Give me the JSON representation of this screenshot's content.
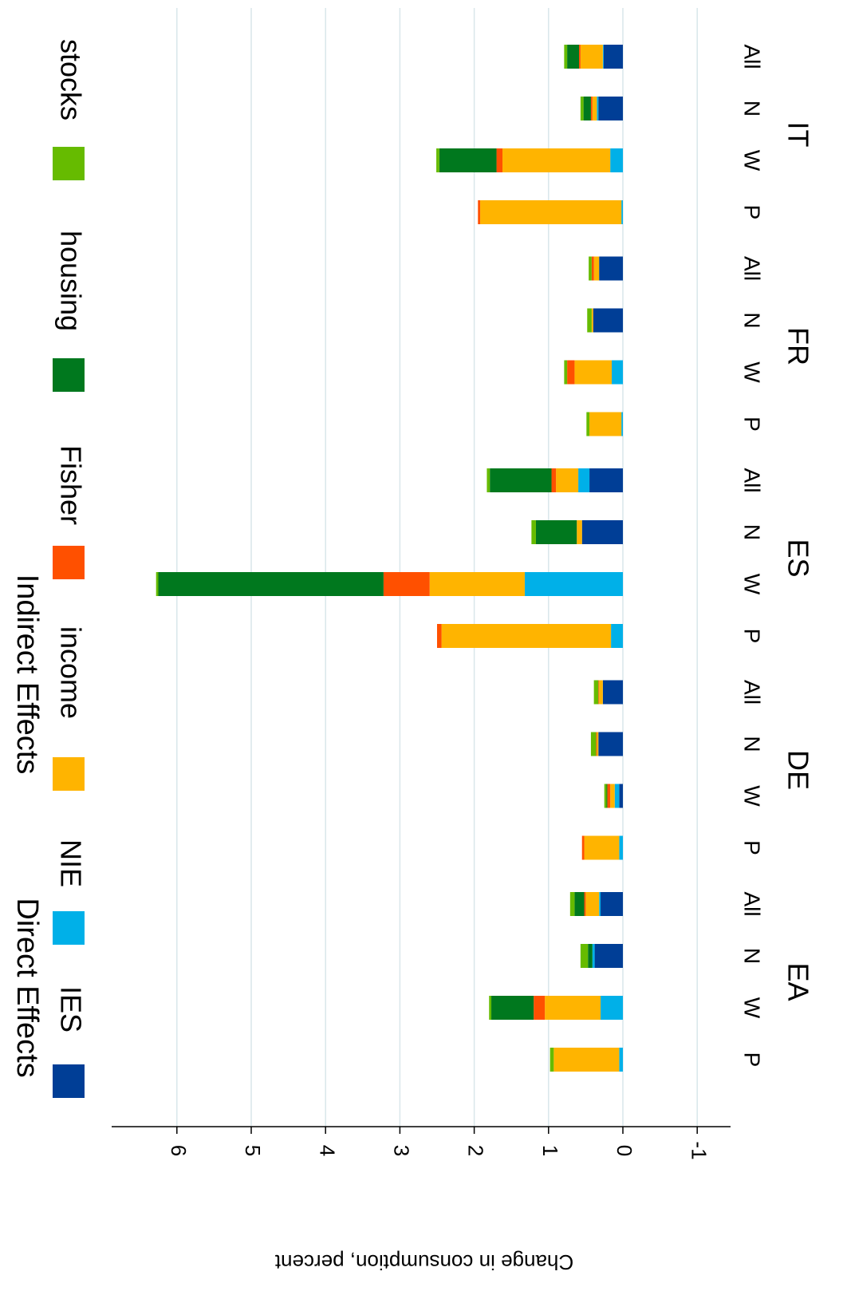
{
  "chart_data": {
    "type": "bar",
    "orientation": "rotated-90",
    "stacked": true,
    "ylabel": "Change in consumption, percent",
    "ylim": [
      -1.4,
      6.8
    ],
    "yticks": [
      -1,
      0,
      1,
      2,
      3,
      4,
      5,
      6
    ],
    "grid": true,
    "legend": {
      "placement": "top",
      "groups": [
        {
          "title": "Direct Effects",
          "items": [
            "IES",
            "NIE"
          ]
        },
        {
          "title": "Indirect Effects",
          "items": [
            "income",
            "Fisher",
            "housing",
            "stocks"
          ]
        }
      ]
    },
    "colors": {
      "IES": "#003e96",
      "NIE": "#00b0e8",
      "income": "#ffb400",
      "Fisher": "#ff5000",
      "housing": "#00781e",
      "stocks": "#66bb00"
    },
    "countries": [
      {
        "name": "EA",
        "groups": [
          "P",
          "W",
          "N",
          "All"
        ]
      },
      {
        "name": "DE",
        "groups": [
          "P",
          "W",
          "N",
          "All"
        ]
      },
      {
        "name": "ES",
        "groups": [
          "P",
          "W",
          "N",
          "All"
        ]
      },
      {
        "name": "FR",
        "groups": [
          "P",
          "W",
          "N",
          "All"
        ]
      },
      {
        "name": "IT",
        "groups": [
          "P",
          "W",
          "N",
          "All"
        ]
      }
    ],
    "series_order": [
      "IES",
      "NIE",
      "income",
      "Fisher",
      "housing",
      "stocks"
    ],
    "bars": [
      {
        "country": "EA",
        "group": "P",
        "IES": 0.0,
        "NIE": 0.05,
        "income": 0.88,
        "Fisher": 0.0,
        "housing": 0.0,
        "stocks": 0.05
      },
      {
        "country": "EA",
        "group": "W",
        "IES": 0.0,
        "NIE": 0.3,
        "income": 0.75,
        "Fisher": 0.15,
        "housing": 0.57,
        "stocks": 0.03
      },
      {
        "country": "EA",
        "group": "N",
        "IES": 0.38,
        "NIE": 0.03,
        "income": 0.0,
        "Fisher": 0.0,
        "housing": 0.06,
        "stocks": 0.1
      },
      {
        "country": "EA",
        "group": "All",
        "IES": 0.3,
        "NIE": 0.02,
        "income": 0.18,
        "Fisher": 0.02,
        "housing": 0.13,
        "stocks": 0.06
      },
      {
        "country": "DE",
        "group": "P",
        "IES": 0.0,
        "NIE": 0.05,
        "income": 0.47,
        "Fisher": 0.03,
        "housing": 0.0,
        "stocks": 0.0
      },
      {
        "country": "DE",
        "group": "W",
        "IES": 0.05,
        "NIE": 0.06,
        "income": 0.06,
        "Fisher": 0.04,
        "housing": 0.01,
        "stocks": 0.03
      },
      {
        "country": "DE",
        "group": "N",
        "IES": 0.33,
        "NIE": 0.0,
        "income": 0.02,
        "Fisher": 0.01,
        "housing": 0.0,
        "stocks": 0.07
      },
      {
        "country": "DE",
        "group": "All",
        "IES": 0.27,
        "NIE": 0.0,
        "income": 0.05,
        "Fisher": 0.01,
        "housing": 0.0,
        "stocks": 0.06
      },
      {
        "country": "ES",
        "group": "P",
        "IES": 0.0,
        "NIE": 0.16,
        "income": 2.28,
        "Fisher": 0.06,
        "housing": 0.0,
        "stocks": 0.0
      },
      {
        "country": "ES",
        "group": "W",
        "IES": 0.0,
        "NIE": 1.32,
        "income": 1.28,
        "Fisher": 0.62,
        "housing": 3.03,
        "stocks": 0.03
      },
      {
        "country": "ES",
        "group": "N",
        "IES": 0.55,
        "NIE": 0.0,
        "income": 0.07,
        "Fisher": 0.0,
        "housing": 0.55,
        "stocks": 0.06
      },
      {
        "country": "ES",
        "group": "All",
        "IES": 0.45,
        "NIE": 0.15,
        "income": 0.3,
        "Fisher": 0.06,
        "housing": 0.83,
        "stocks": 0.04
      },
      {
        "country": "FR",
        "group": "P",
        "IES": 0.0,
        "NIE": 0.02,
        "income": 0.43,
        "Fisher": 0.0,
        "housing": 0.0,
        "stocks": 0.04
      },
      {
        "country": "FR",
        "group": "W",
        "IES": 0.0,
        "NIE": 0.15,
        "income": 0.5,
        "Fisher": 0.1,
        "housing": 0.0,
        "stocks": 0.04
      },
      {
        "country": "FR",
        "group": "N",
        "IES": 0.4,
        "NIE": 0.0,
        "income": 0.02,
        "Fisher": 0.0,
        "housing": 0.0,
        "stocks": 0.06
      },
      {
        "country": "FR",
        "group": "All",
        "IES": 0.32,
        "NIE": 0.0,
        "income": 0.07,
        "Fisher": 0.03,
        "housing": 0.0,
        "stocks": 0.04
      },
      {
        "country": "IT",
        "group": "P",
        "IES": 0.0,
        "NIE": 0.02,
        "income": 1.9,
        "Fisher": 0.03,
        "housing": 0.0,
        "stocks": 0.0
      },
      {
        "country": "IT",
        "group": "W",
        "IES": 0.0,
        "NIE": 0.17,
        "income": 1.45,
        "Fisher": 0.08,
        "housing": 0.77,
        "stocks": 0.04
      },
      {
        "country": "IT",
        "group": "N",
        "IES": 0.33,
        "NIE": 0.02,
        "income": 0.06,
        "Fisher": 0.02,
        "housing": 0.1,
        "stocks": 0.04
      },
      {
        "country": "IT",
        "group": "All",
        "IES": 0.26,
        "NIE": 0.01,
        "income": 0.3,
        "Fisher": 0.02,
        "housing": 0.16,
        "stocks": 0.04
      }
    ]
  }
}
